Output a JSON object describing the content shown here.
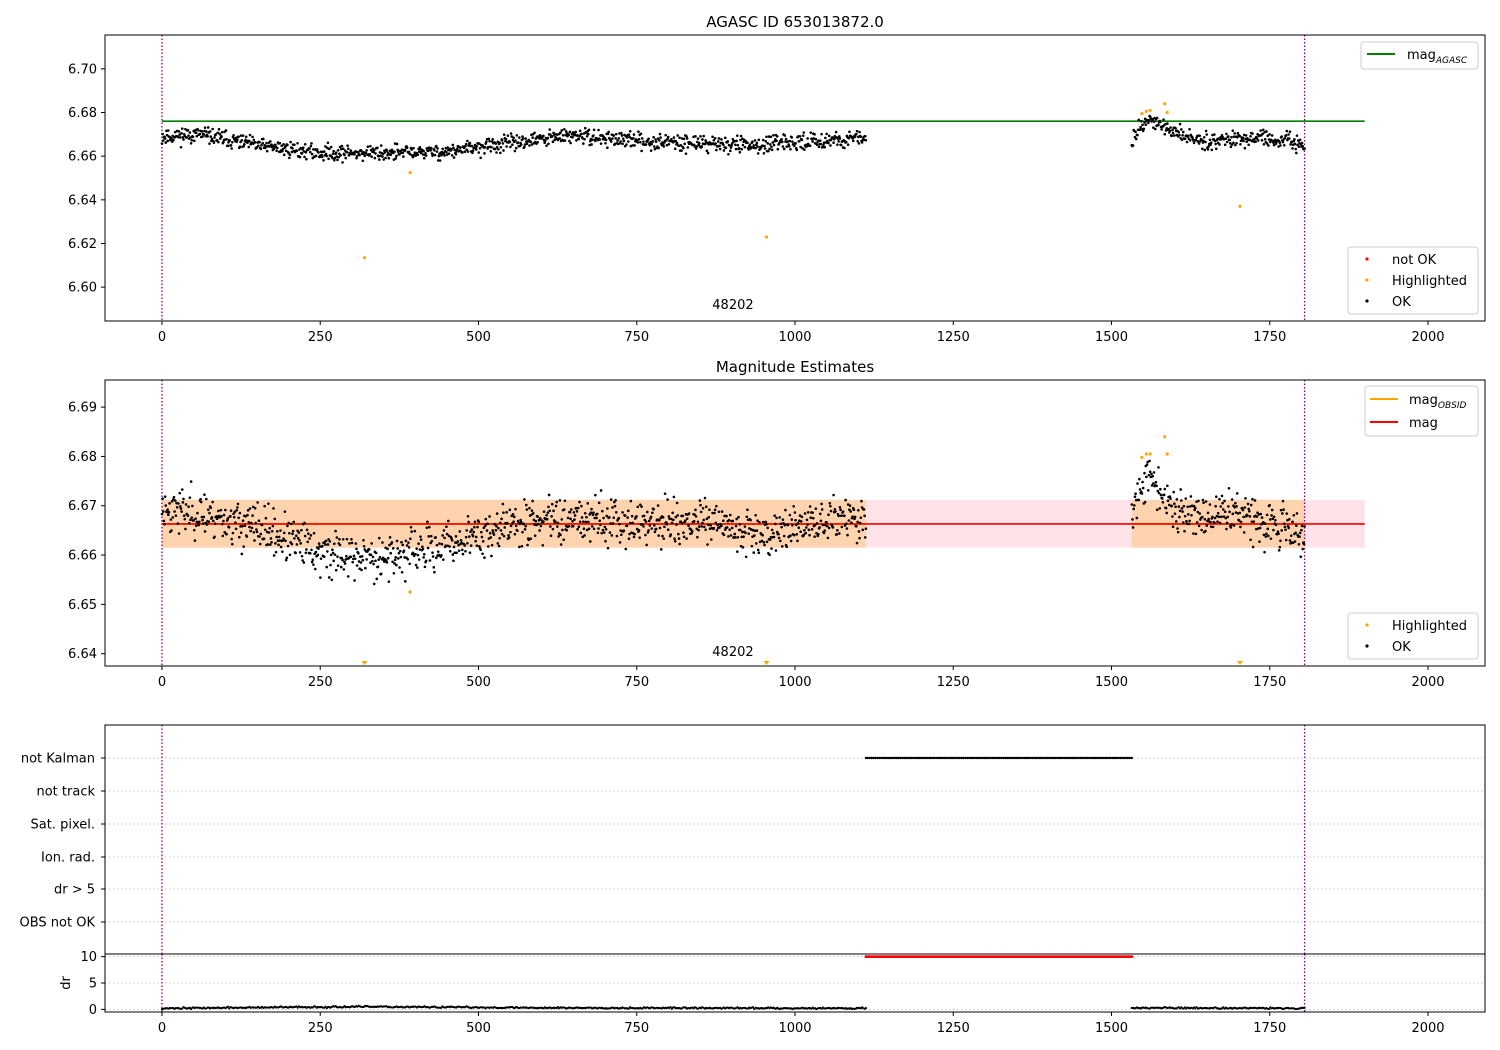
{
  "colors": {
    "ok": "#000000",
    "highlighted": "#ffa500",
    "not_ok": "#ff0000",
    "mag_agasc": "#008000",
    "mag_obsid": "#ffa500",
    "mag": "#ff0000",
    "band_fill": "#ffc0cb",
    "obs_boundary": "#800080"
  },
  "chart_data": [
    {
      "type": "scatter",
      "title": "AGASC ID 653013872.0",
      "xlim": [
        -90,
        2090
      ],
      "ylim": [
        6.5845,
        6.7155
      ],
      "xticks": [
        0,
        250,
        500,
        750,
        1000,
        1250,
        1500,
        1750,
        2000
      ],
      "yticks": [
        6.6,
        6.62,
        6.64,
        6.66,
        6.68,
        6.7
      ],
      "obs_boundaries": [
        0,
        1805
      ],
      "obsid_label": {
        "text": "48202",
        "x": 902,
        "y": 6.59
      },
      "mag_agasc": {
        "y": 6.676,
        "x0": 0,
        "x1": 1900
      },
      "highlighted_points": [
        {
          "x": 320,
          "y": 6.6135
        },
        {
          "x": 392,
          "y": 6.6525
        },
        {
          "x": 955,
          "y": 6.623
        },
        {
          "x": 1548,
          "y": 6.6795
        },
        {
          "x": 1555,
          "y": 6.6805
        },
        {
          "x": 1561,
          "y": 6.681
        },
        {
          "x": 1584,
          "y": 6.684
        },
        {
          "x": 1588,
          "y": 6.68
        },
        {
          "x": 1703,
          "y": 6.637
        }
      ],
      "ok_segments": [
        {
          "x0": 0,
          "x1": 1112,
          "n": 1112,
          "anchors": [
            [
              0,
              6.669
            ],
            [
              60,
              6.67
            ],
            [
              150,
              6.665
            ],
            [
              250,
              6.6615
            ],
            [
              350,
              6.6615
            ],
            [
              450,
              6.662
            ],
            [
              550,
              6.666
            ],
            [
              650,
              6.6695
            ],
            [
              750,
              6.667
            ],
            [
              850,
              6.666
            ],
            [
              950,
              6.665
            ],
            [
              1050,
              6.6675
            ],
            [
              1112,
              6.668
            ]
          ],
          "spread": 0.0035
        },
        {
          "x0": 1532,
          "x1": 1805,
          "n": 273,
          "anchors": [
            [
              1532,
              6.667
            ],
            [
              1545,
              6.674
            ],
            [
              1560,
              6.677
            ],
            [
              1600,
              6.6705
            ],
            [
              1650,
              6.667
            ],
            [
              1700,
              6.6685
            ],
            [
              1750,
              6.6675
            ],
            [
              1805,
              6.6655
            ]
          ],
          "spread": 0.0035
        }
      ],
      "legend_lines": [
        {
          "label": "mag",
          "sub": "AGASC",
          "color": "#008000"
        }
      ],
      "legend_points": [
        {
          "label": "not OK",
          "color": "#ff0000"
        },
        {
          "label": "Highlighted",
          "color": "#ffa500"
        },
        {
          "label": "OK",
          "color": "#000000"
        }
      ]
    },
    {
      "type": "scatter",
      "title": "Magnitude Estimates",
      "xlim": [
        -90,
        2090
      ],
      "ylim": [
        6.6375,
        6.6955
      ],
      "xticks": [
        0,
        250,
        500,
        750,
        1000,
        1250,
        1500,
        1750,
        2000
      ],
      "yticks": [
        6.64,
        6.65,
        6.66,
        6.67,
        6.68,
        6.69
      ],
      "obs_boundaries": [
        0,
        1805
      ],
      "obsid_label": {
        "text": "48202",
        "x": 902,
        "y": 6.6395
      },
      "mag": {
        "y": 6.6663,
        "x0": 0,
        "x1": 1900
      },
      "mag_band": {
        "y0": 6.6615,
        "y1": 6.6712,
        "x0": 0,
        "x1": 1900
      },
      "obsid_band": {
        "y0": 6.6615,
        "y1": 6.6712,
        "segments": [
          [
            0,
            1112
          ],
          [
            1532,
            1805
          ]
        ]
      },
      "highlighted_points": [
        {
          "x": 392,
          "y": 6.6525
        },
        {
          "x": 1548,
          "y": 6.6798
        },
        {
          "x": 1555,
          "y": 6.6805
        },
        {
          "x": 1561,
          "y": 6.6805
        },
        {
          "x": 1584,
          "y": 6.684
        },
        {
          "x": 1588,
          "y": 6.6805
        }
      ],
      "highlighted_off_scale": [
        320,
        955,
        1703
      ],
      "ok_segments": [
        {
          "x0": 0,
          "x1": 1112,
          "n": 1112,
          "anchors": [
            [
              0,
              6.6695
            ],
            [
              60,
              6.6685
            ],
            [
              150,
              6.6655
            ],
            [
              250,
              6.6605
            ],
            [
              320,
              6.6595
            ],
            [
              400,
              6.6605
            ],
            [
              450,
              6.662
            ],
            [
              550,
              6.666
            ],
            [
              650,
              6.668
            ],
            [
              750,
              6.6665
            ],
            [
              850,
              6.6665
            ],
            [
              950,
              6.6645
            ],
            [
              1050,
              6.667
            ],
            [
              1112,
              6.6675
            ]
          ],
          "spread": 0.0045
        },
        {
          "x0": 1532,
          "x1": 1805,
          "n": 273,
          "anchors": [
            [
              1532,
              6.667
            ],
            [
              1545,
              6.674
            ],
            [
              1560,
              6.6755
            ],
            [
              1600,
              6.6695
            ],
            [
              1650,
              6.6675
            ],
            [
              1700,
              6.669
            ],
            [
              1750,
              6.667
            ],
            [
              1805,
              6.664
            ]
          ],
          "spread": 0.0045
        }
      ],
      "legend_lines": [
        {
          "label": "mag",
          "sub": "OBSID",
          "color": "#ffa500"
        },
        {
          "label": "mag",
          "sub": "",
          "color": "#ff0000"
        }
      ],
      "legend_points": [
        {
          "label": "Highlighted",
          "color": "#ffa500"
        },
        {
          "label": "OK",
          "color": "#000000"
        }
      ]
    },
    {
      "type": "scatter",
      "title": "",
      "xlim": [
        -90,
        2090
      ],
      "flag_rows": [
        "not Kalman",
        "not track",
        "Sat. pixel.",
        "Ion. rad.",
        "dr > 5",
        "OBS not OK"
      ],
      "flag_points": [
        {
          "row": "not Kalman",
          "x0": 1112,
          "x1": 1532,
          "n": 140
        }
      ],
      "obs_boundaries": [
        0,
        1805
      ]
    },
    {
      "type": "scatter",
      "title": "",
      "xlim": [
        -90,
        2090
      ],
      "ylim": [
        -0.5,
        10.5
      ],
      "ylabel": "dr",
      "xticks": [
        0,
        250,
        500,
        750,
        1000,
        1250,
        1500,
        1750,
        2000
      ],
      "yticks": [
        0,
        5,
        10
      ],
      "obs_boundaries": [
        0,
        1805
      ],
      "clipped_points": {
        "x0": 1112,
        "x1": 1532,
        "y": 10,
        "n": 180
      },
      "ok_segments": [
        {
          "x0": 0,
          "x1": 1112,
          "n": 556,
          "anchors": [
            [
              0,
              0.2
            ],
            [
              200,
              0.4
            ],
            [
              320,
              0.5
            ],
            [
              600,
              0.3
            ],
            [
              1112,
              0.2
            ]
          ],
          "spread": 0.15
        },
        {
          "x0": 1532,
          "x1": 1805,
          "n": 137,
          "anchors": [
            [
              1532,
              0.3
            ],
            [
              1805,
              0.2
            ]
          ],
          "spread": 0.15
        }
      ]
    }
  ]
}
